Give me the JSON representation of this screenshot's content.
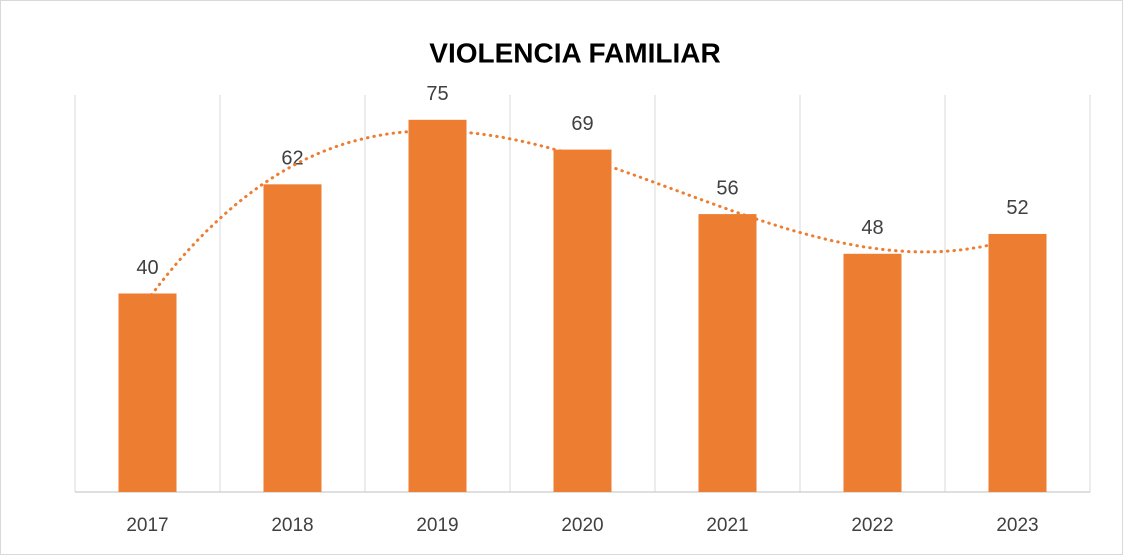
{
  "chart_data": {
    "type": "bar",
    "title": "VIOLENCIA FAMILIAR",
    "categories": [
      "2017",
      "2018",
      "2019",
      "2020",
      "2021",
      "2022",
      "2023"
    ],
    "values": [
      40,
      62,
      75,
      69,
      56,
      48,
      52
    ],
    "color": "#ed7d31",
    "ylim": [
      0,
      80
    ],
    "grid": true,
    "trendline": {
      "type": "polynomial",
      "order": 3
    }
  }
}
